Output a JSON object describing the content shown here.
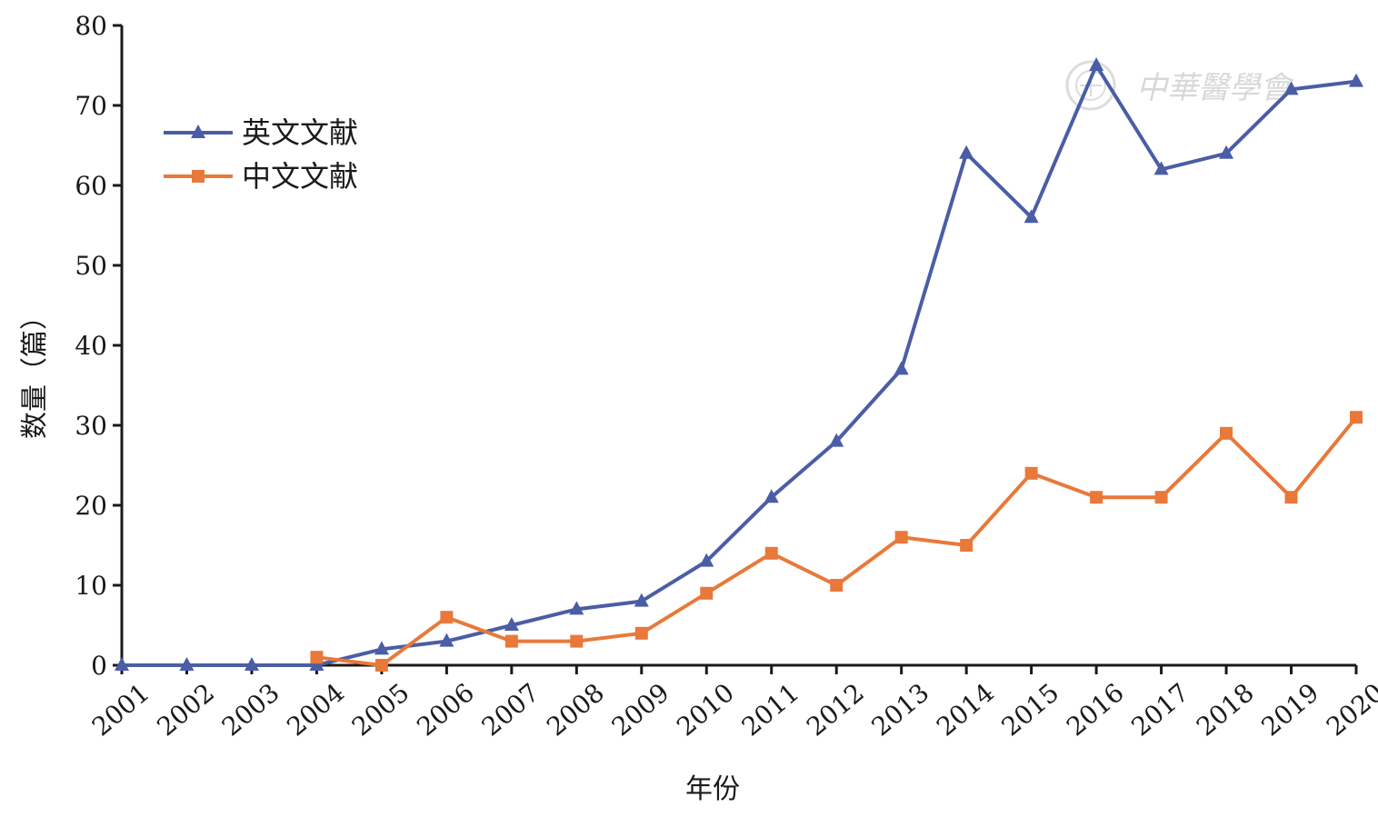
{
  "chart_data": {
    "type": "line",
    "title": "",
    "xlabel": "年份",
    "ylabel": "数量（篇）",
    "ylim": [
      0,
      80
    ],
    "yticks": [
      0,
      10,
      20,
      30,
      40,
      50,
      60,
      70,
      80
    ],
    "categories": [
      "2001",
      "2002",
      "2003",
      "2004",
      "2005",
      "2006",
      "2007",
      "2008",
      "2009",
      "2010",
      "2011",
      "2012",
      "2013",
      "2014",
      "2015",
      "2016",
      "2017",
      "2018",
      "2019",
      "2020"
    ],
    "grid": false,
    "legend_position": "top-left",
    "series": [
      {
        "name": "英文文献",
        "color": "#4a5da6",
        "marker": "triangle",
        "values": [
          0,
          0,
          0,
          0,
          2,
          3,
          5,
          7,
          8,
          13,
          21,
          28,
          37,
          64,
          56,
          75,
          62,
          64,
          72,
          73
        ]
      },
      {
        "name": "中文文献",
        "color": "#e8793a",
        "marker": "square",
        "values": [
          null,
          null,
          null,
          1,
          0,
          6,
          3,
          3,
          4,
          9,
          14,
          10,
          16,
          15,
          24,
          21,
          21,
          29,
          21,
          31
        ]
      }
    ]
  },
  "watermark": {
    "text": "中華醫學會",
    "icon": "seal-icon"
  }
}
